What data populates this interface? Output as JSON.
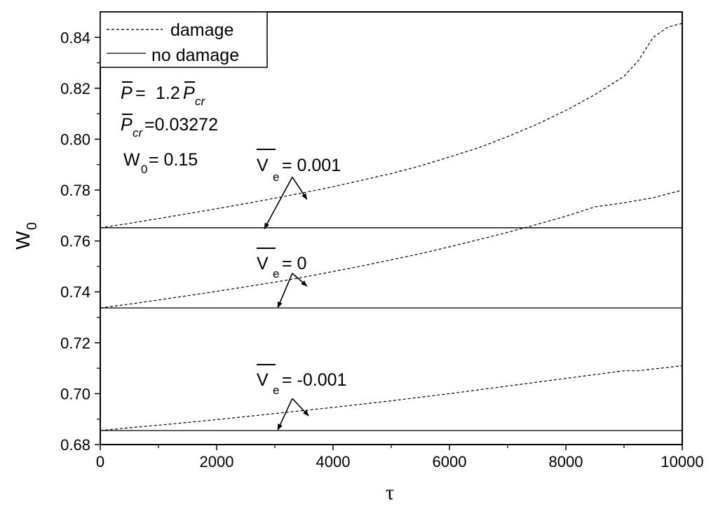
{
  "chart_data": {
    "type": "line",
    "title": "",
    "xlabel": "τ",
    "ylabel": {
      "main": "W",
      "sub": "0"
    },
    "xlim": [
      0,
      10000
    ],
    "ylim": [
      0.68,
      0.85
    ],
    "xticks": [
      0,
      2000,
      4000,
      6000,
      8000,
      10000
    ],
    "xtick_labels": [
      "0",
      "2000",
      "4000",
      "6000",
      "8000",
      "10000"
    ],
    "yticks": [
      0.68,
      0.7,
      0.72,
      0.74,
      0.76,
      0.78,
      0.8,
      0.82,
      0.84
    ],
    "ytick_labels": [
      "0.68",
      "0.70",
      "0.72",
      "0.74",
      "0.76",
      "0.78",
      "0.80",
      "0.82",
      "0.84"
    ],
    "grid": false,
    "legend": {
      "position": "top-left",
      "entries": [
        {
          "label": "damage",
          "style": "dashed"
        },
        {
          "label": "no damage",
          "style": "solid"
        }
      ]
    },
    "parameters": {
      "p_line": {
        "symbol": "P",
        "eq": "= ",
        "coef": "1.2",
        "symbol2": "P",
        "sub2": "cr"
      },
      "pcr_line": {
        "symbol": "P",
        "sub": "cr",
        "value": "=0.03272"
      },
      "w0_line": {
        "symbol": "W",
        "sub": "0",
        "value": "= 0.15"
      }
    },
    "x": [
      0,
      500,
      1000,
      1500,
      2000,
      2500,
      3000,
      3500,
      4000,
      4500,
      5000,
      5500,
      6000,
      6500,
      7000,
      7500,
      8000,
      8500,
      9000,
      9250,
      9500,
      9750,
      10000
    ],
    "series": [
      {
        "style": "dashed",
        "label": {
          "symbol": "V",
          "sub": "e",
          "value": "= 0.001"
        },
        "label_anchor": [
          3300,
          0.7801
        ],
        "arrow_tail": [
          3300,
          0.7851
        ],
        "arrow_heads": [
          [
            3550,
            0.7764
          ],
          [
            2820,
            0.7648
          ]
        ],
        "values": [
          0.7652,
          0.7669,
          0.7688,
          0.7707,
          0.7727,
          0.7747,
          0.7768,
          0.779,
          0.7813,
          0.7839,
          0.7865,
          0.7895,
          0.793,
          0.7966,
          0.801,
          0.8058,
          0.8113,
          0.8175,
          0.8247,
          0.831,
          0.84,
          0.844,
          0.8455
        ]
      },
      {
        "style": "solid",
        "values": [
          0.7652,
          0.7652,
          0.7652,
          0.7652,
          0.7652,
          0.7652,
          0.7652,
          0.7652,
          0.7652,
          0.7652,
          0.7652,
          0.7652,
          0.7652,
          0.7652,
          0.7652,
          0.7652,
          0.7652,
          0.7652,
          0.7652,
          0.7652,
          0.7652,
          0.7652,
          0.7652
        ]
      },
      {
        "style": "dashed",
        "label": {
          "symbol": "V",
          "sub": "e",
          "value": "= 0"
        },
        "label_anchor": [
          3300,
          0.7388
        ],
        "arrow_tail": [
          3300,
          0.7473
        ],
        "arrow_heads": [
          [
            3550,
            0.7423
          ],
          [
            3050,
            0.7338
          ]
        ],
        "values": [
          0.7337,
          0.7352,
          0.7368,
          0.7385,
          0.7402,
          0.742,
          0.7438,
          0.7458,
          0.748,
          0.7502,
          0.7526,
          0.755,
          0.7577,
          0.7605,
          0.7634,
          0.7665,
          0.7697,
          0.7734,
          0.775,
          0.776,
          0.777,
          0.7785,
          0.78
        ]
      },
      {
        "style": "solid",
        "values": [
          0.7337,
          0.7337,
          0.7337,
          0.7337,
          0.7337,
          0.7337,
          0.7337,
          0.7337,
          0.7337,
          0.7337,
          0.7337,
          0.7337,
          0.7337,
          0.7337,
          0.7337,
          0.7337,
          0.7337,
          0.7337,
          0.7337,
          0.7337,
          0.7337,
          0.7337,
          0.7337
        ]
      },
      {
        "style": "dashed",
        "label": {
          "symbol": "V",
          "sub": "e",
          "value": "= -0.001"
        },
        "label_anchor": [
          3300,
          0.6914
        ],
        "arrow_tail": [
          3300,
          0.6981
        ],
        "arrow_heads": [
          [
            3580,
            0.6913
          ],
          [
            3050,
            0.6858
          ]
        ],
        "values": [
          0.6855,
          0.6866,
          0.6876,
          0.6887,
          0.6898,
          0.691,
          0.6922,
          0.6934,
          0.6946,
          0.6959,
          0.6972,
          0.6986,
          0.7,
          0.7015,
          0.703,
          0.7045,
          0.706,
          0.7075,
          0.709,
          0.709,
          0.7097,
          0.7103,
          0.711
        ]
      },
      {
        "style": "solid",
        "values": [
          0.6855,
          0.6855,
          0.6855,
          0.6855,
          0.6855,
          0.6855,
          0.6855,
          0.6855,
          0.6855,
          0.6855,
          0.6855,
          0.6855,
          0.6855,
          0.6855,
          0.6855,
          0.6855,
          0.6855,
          0.6855,
          0.6855,
          0.6855,
          0.6855,
          0.6855,
          0.6855
        ]
      }
    ]
  }
}
